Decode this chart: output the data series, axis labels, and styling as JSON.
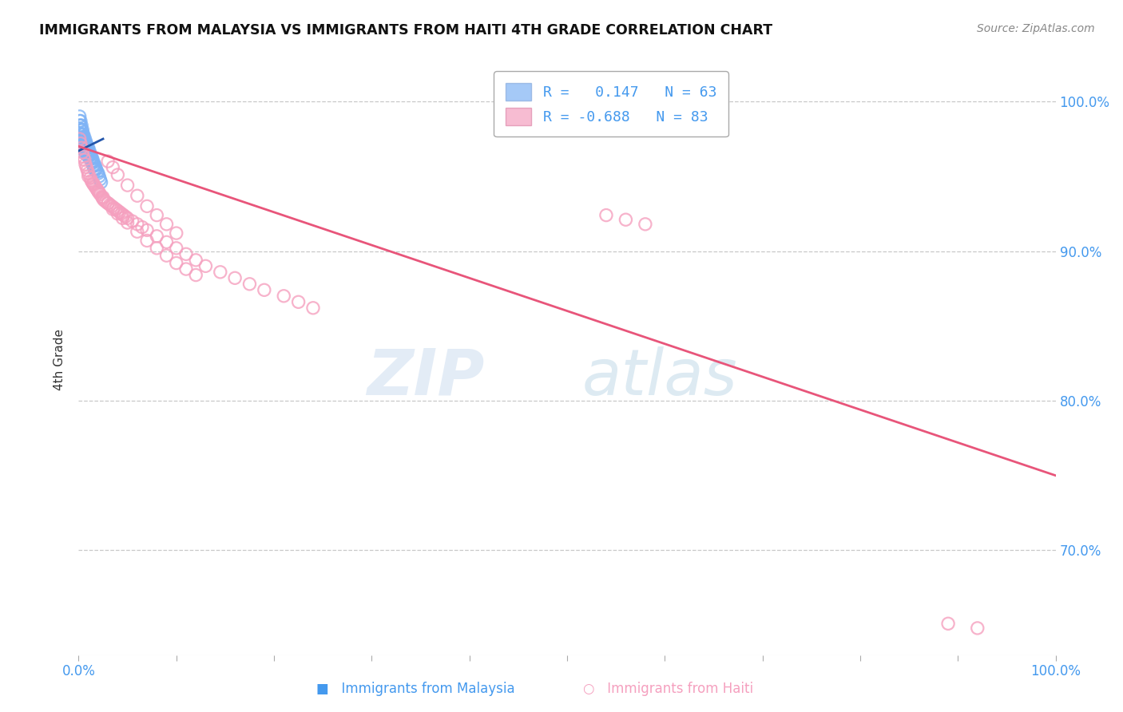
{
  "title": "IMMIGRANTS FROM MALAYSIA VS IMMIGRANTS FROM HAITI 4TH GRADE CORRELATION CHART",
  "source": "Source: ZipAtlas.com",
  "ylabel": "4th Grade",
  "malaysia_R": 0.147,
  "malaysia_N": 63,
  "haiti_R": -0.688,
  "haiti_N": 83,
  "malaysia_color": "#7fb3f5",
  "haiti_color": "#f5a0bf",
  "malaysia_line_color": "#2255aa",
  "haiti_line_color": "#e8557a",
  "xlim": [
    0.0,
    1.0
  ],
  "ylim": [
    0.63,
    1.025
  ],
  "x_ticks": [
    0.0,
    0.1,
    0.2,
    0.3,
    0.4,
    0.5,
    0.6,
    0.7,
    0.8,
    0.9,
    1.0
  ],
  "x_tick_labels": [
    "0.0%",
    "",
    "",
    "",
    "",
    "",
    "",
    "",
    "",
    "",
    "100.0%"
  ],
  "y_ticks_right": [
    0.7,
    0.8,
    0.9,
    1.0
  ],
  "y_tick_labels_right": [
    "70.0%",
    "80.0%",
    "90.0%",
    "100.0%"
  ],
  "grid_color": "#bbbbbb",
  "tick_color": "#4499ee",
  "bg_color": "#ffffff",
  "malaysia_scatter_x": [
    0.001,
    0.001,
    0.001,
    0.001,
    0.001,
    0.002,
    0.002,
    0.002,
    0.002,
    0.002,
    0.002,
    0.003,
    0.003,
    0.003,
    0.003,
    0.003,
    0.003,
    0.004,
    0.004,
    0.004,
    0.004,
    0.004,
    0.005,
    0.005,
    0.005,
    0.005,
    0.006,
    0.006,
    0.006,
    0.006,
    0.007,
    0.007,
    0.007,
    0.007,
    0.008,
    0.008,
    0.008,
    0.009,
    0.009,
    0.009,
    0.01,
    0.01,
    0.01,
    0.011,
    0.011,
    0.012,
    0.012,
    0.013,
    0.013,
    0.014,
    0.014,
    0.015,
    0.015,
    0.016,
    0.016,
    0.017,
    0.017,
    0.018,
    0.019,
    0.02,
    0.021,
    0.022,
    0.023
  ],
  "malaysia_scatter_y": [
    0.99,
    0.987,
    0.984,
    0.982,
    0.979,
    0.987,
    0.984,
    0.981,
    0.978,
    0.975,
    0.972,
    0.984,
    0.981,
    0.978,
    0.975,
    0.972,
    0.969,
    0.981,
    0.978,
    0.975,
    0.972,
    0.969,
    0.978,
    0.975,
    0.972,
    0.969,
    0.976,
    0.973,
    0.97,
    0.967,
    0.974,
    0.971,
    0.968,
    0.965,
    0.972,
    0.969,
    0.966,
    0.97,
    0.967,
    0.964,
    0.969,
    0.966,
    0.963,
    0.967,
    0.964,
    0.965,
    0.962,
    0.963,
    0.96,
    0.962,
    0.959,
    0.96,
    0.957,
    0.958,
    0.955,
    0.957,
    0.954,
    0.955,
    0.953,
    0.952,
    0.95,
    0.948,
    0.946
  ],
  "haiti_scatter_x": [
    0.001,
    0.002,
    0.003,
    0.004,
    0.005,
    0.006,
    0.007,
    0.008,
    0.009,
    0.01,
    0.012,
    0.013,
    0.014,
    0.015,
    0.016,
    0.017,
    0.018,
    0.019,
    0.02,
    0.021,
    0.022,
    0.024,
    0.025,
    0.026,
    0.028,
    0.03,
    0.032,
    0.034,
    0.036,
    0.038,
    0.04,
    0.042,
    0.044,
    0.046,
    0.048,
    0.05,
    0.055,
    0.06,
    0.065,
    0.07,
    0.08,
    0.09,
    0.1,
    0.11,
    0.12,
    0.13,
    0.145,
    0.16,
    0.175,
    0.19,
    0.21,
    0.225,
    0.24,
    0.01,
    0.015,
    0.02,
    0.025,
    0.03,
    0.035,
    0.04,
    0.045,
    0.05,
    0.06,
    0.07,
    0.08,
    0.09,
    0.1,
    0.11,
    0.12,
    0.54,
    0.56,
    0.58,
    0.03,
    0.035,
    0.04,
    0.05,
    0.06,
    0.07,
    0.08,
    0.09,
    0.1,
    0.89,
    0.92
  ],
  "haiti_scatter_y": [
    0.975,
    0.972,
    0.969,
    0.966,
    0.963,
    0.961,
    0.958,
    0.956,
    0.954,
    0.952,
    0.949,
    0.947,
    0.946,
    0.945,
    0.944,
    0.943,
    0.942,
    0.941,
    0.94,
    0.939,
    0.938,
    0.936,
    0.935,
    0.934,
    0.933,
    0.932,
    0.931,
    0.93,
    0.929,
    0.928,
    0.927,
    0.926,
    0.925,
    0.924,
    0.923,
    0.922,
    0.92,
    0.918,
    0.916,
    0.914,
    0.91,
    0.906,
    0.902,
    0.898,
    0.894,
    0.89,
    0.886,
    0.882,
    0.878,
    0.874,
    0.87,
    0.866,
    0.862,
    0.95,
    0.945,
    0.94,
    0.936,
    0.932,
    0.928,
    0.925,
    0.922,
    0.919,
    0.913,
    0.907,
    0.902,
    0.897,
    0.892,
    0.888,
    0.884,
    0.924,
    0.921,
    0.918,
    0.96,
    0.956,
    0.951,
    0.944,
    0.937,
    0.93,
    0.924,
    0.918,
    0.912,
    0.651,
    0.648
  ],
  "haiti_line_x0": 0.0,
  "haiti_line_x1": 1.0,
  "haiti_line_y0": 0.97,
  "haiti_line_y1": 0.75,
  "malaysia_line_x0": 0.0,
  "malaysia_line_x1": 0.025,
  "malaysia_line_y0": 0.967,
  "malaysia_line_y1": 0.975,
  "legend_malaysia_text": "R =   0.147   N = 63",
  "legend_haiti_text": "R = -0.688   N = 83",
  "bottom_legend_malaysia": "Immigrants from Malaysia",
  "bottom_legend_haiti": "Immigrants from Haiti"
}
